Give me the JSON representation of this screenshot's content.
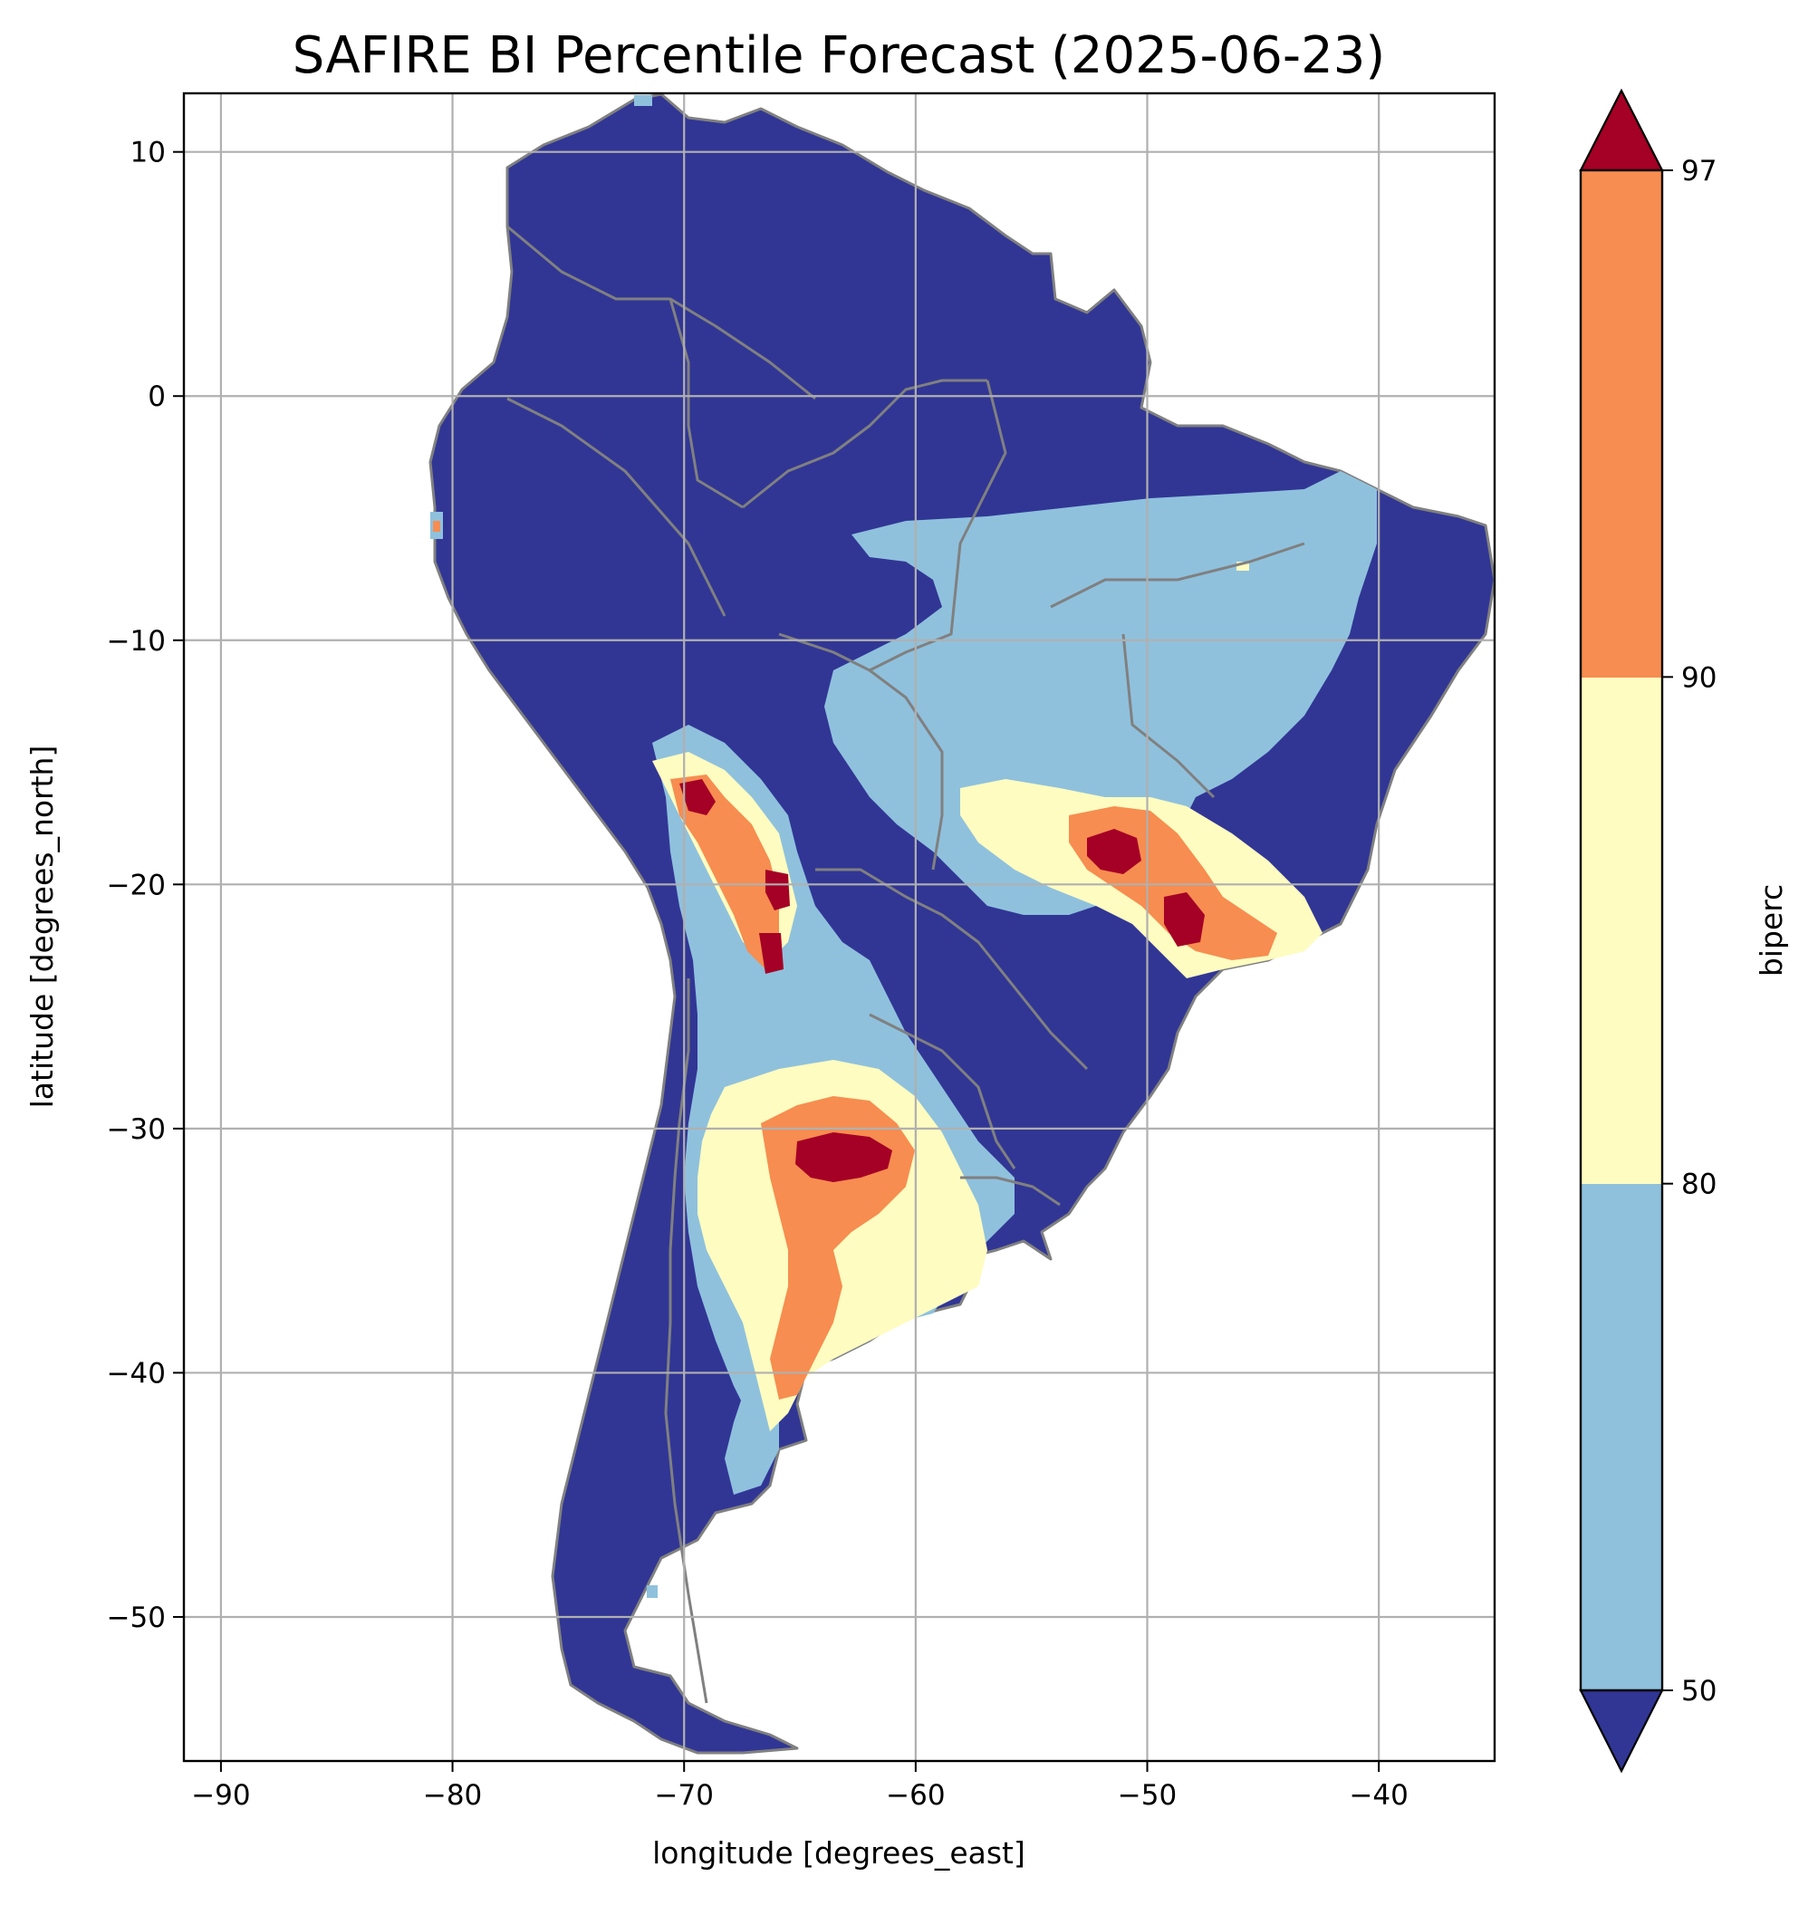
{
  "chart_data": {
    "type": "heatmap",
    "title": "SAFIRE BI Percentile Forecast (2025-06-23)",
    "xlabel": "longitude [degrees_east]",
    "ylabel": "latitude [degrees_north]",
    "xlim": [
      -91.6,
      -35.0
    ],
    "ylim": [
      -55.9,
      12.4
    ],
    "xticks": [
      -90,
      -80,
      -70,
      -60,
      -50,
      -40
    ],
    "xtick_labels": [
      "−90",
      "−80",
      "−70",
      "−60",
      "−50",
      "−40"
    ],
    "yticks": [
      10,
      0,
      -10,
      -20,
      -30,
      -40,
      -50
    ],
    "ytick_labels": [
      "10",
      "0",
      "−10",
      "−20",
      "−30",
      "−40",
      "−50"
    ],
    "grid": true,
    "colorbar": {
      "label": "biperc",
      "boundaries": [
        50,
        80,
        90,
        97
      ],
      "tick_labels": [
        "50",
        "80",
        "90",
        "97"
      ],
      "extend": "both",
      "colors": {
        "under": "#313695",
        "50-80": "#8fc1dd",
        "80-90": "#fefcc0",
        "90-97": "#f78d50",
        "over": "#a50026"
      }
    },
    "features": {
      "coastline_color": "#808080",
      "border_color": "#808080",
      "land_base_color": "#313695"
    },
    "regions": [
      {
        "name": "",
        "category": "50-80",
        "lon": [
          -62,
          -36
        ],
        "lat": [
          -18,
          -5
        ]
      },
      {
        "name": "",
        "category": "90-97",
        "lon": [
          -53,
          -44
        ],
        "lat": [
          -24,
          -17
        ]
      },
      {
        "name": "",
        "category": "over",
        "lon": [
          -52,
          -50
        ],
        "lat": [
          -19,
          -18
        ]
      },
      {
        "name": "",
        "category": "90-97",
        "lon": [
          -67,
          -64
        ],
        "lat": [
          -23,
          -16
        ]
      },
      {
        "name": "",
        "category": "90-97",
        "lon": [
          -66,
          -59
        ],
        "lat": [
          -35,
          -28
        ]
      },
      {
        "name": "",
        "category": "over",
        "lon": [
          -64,
          -61
        ],
        "lat": [
          -32,
          -30
        ]
      },
      {
        "name": "",
        "category": "80-90",
        "lon": [
          -70,
          -54
        ],
        "lat": [
          -42,
          -27
        ]
      }
    ]
  }
}
